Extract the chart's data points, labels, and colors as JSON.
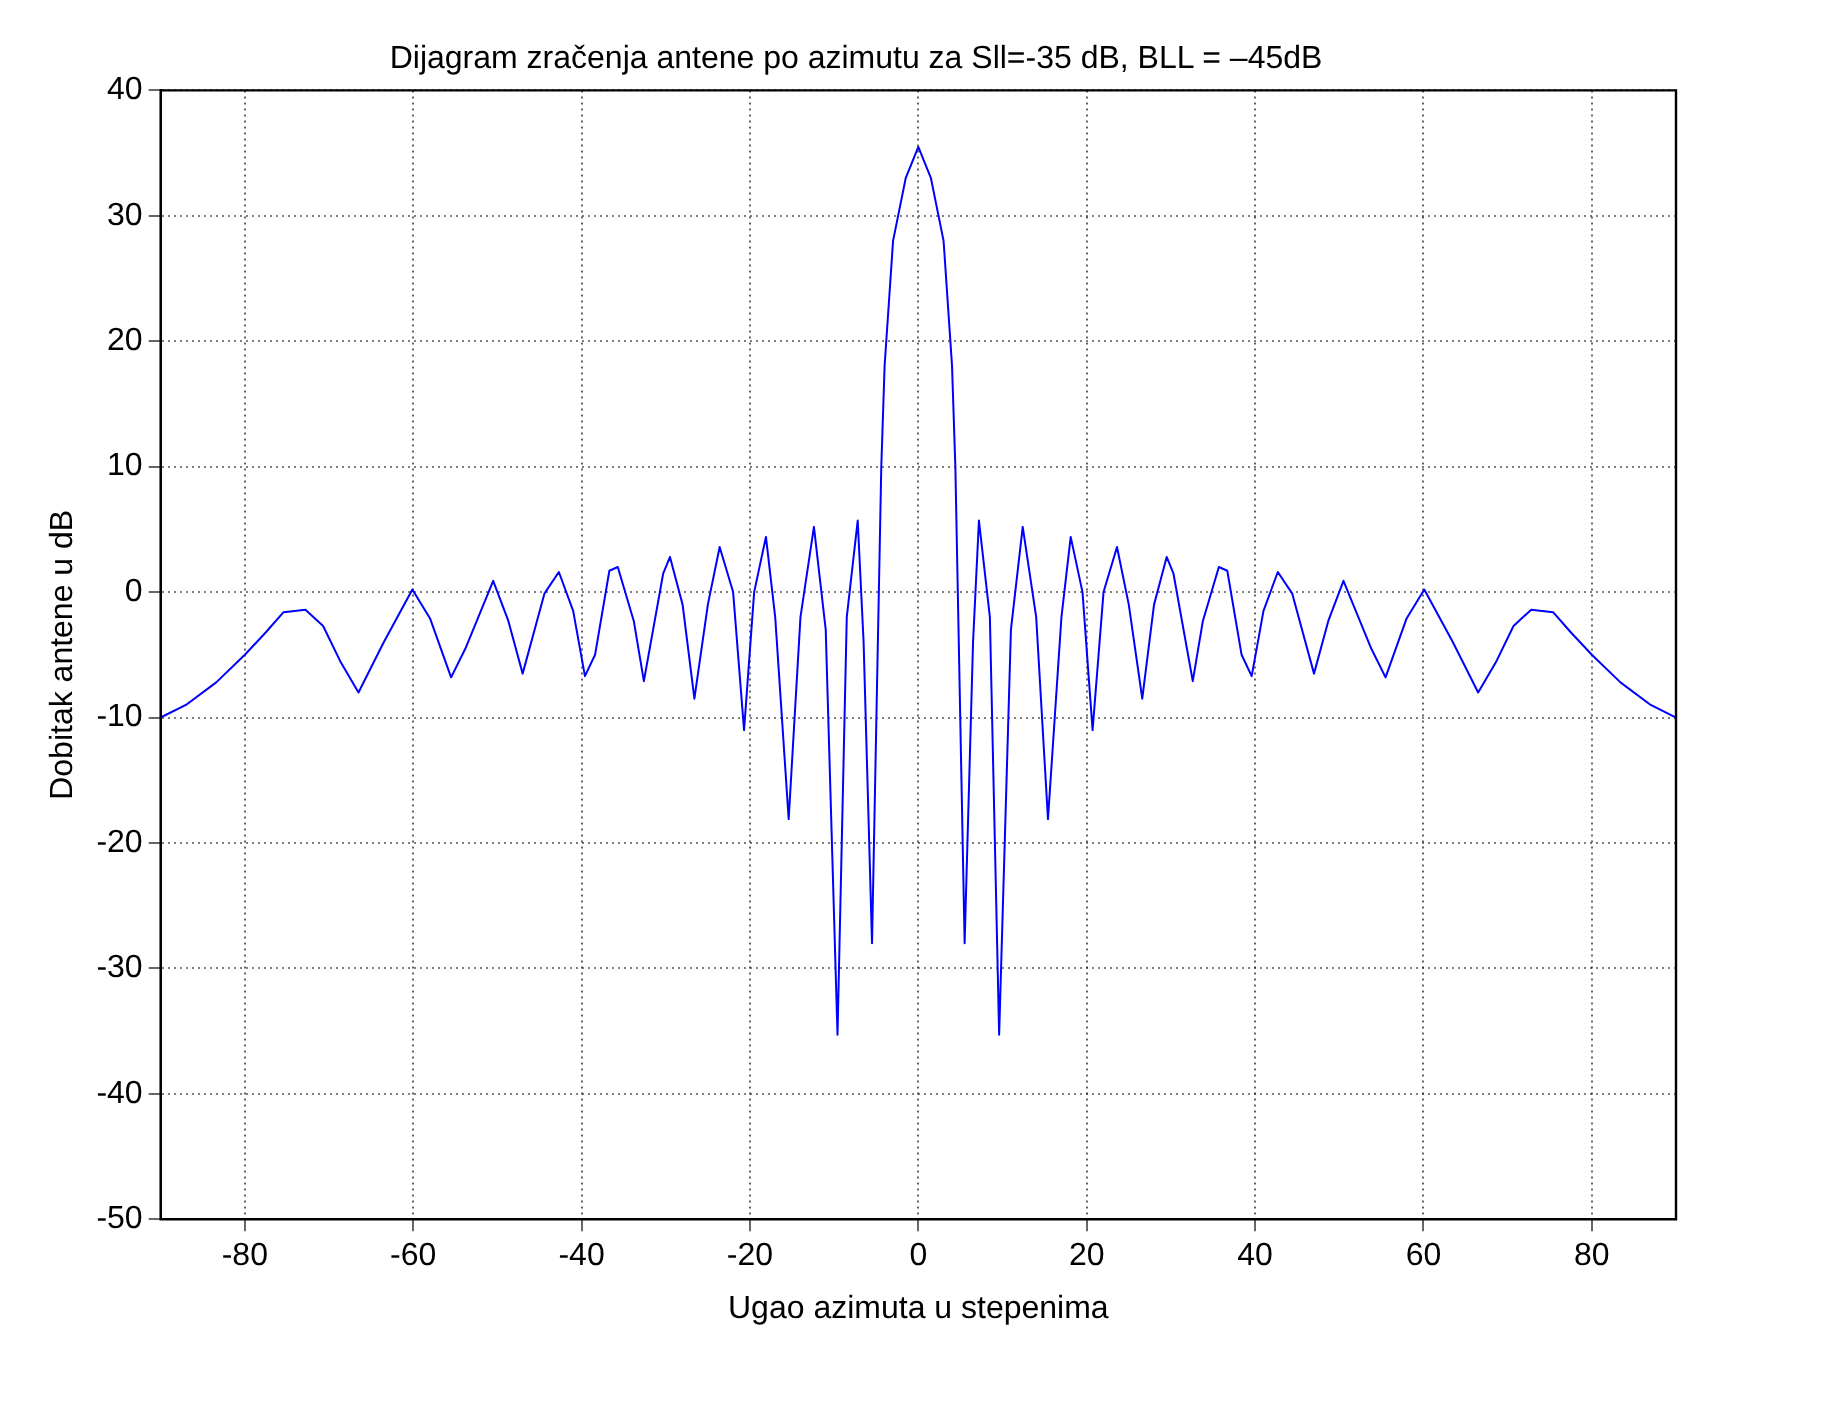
{
  "chart_data": {
    "type": "line",
    "title": "Dijagram zračenja antene po azimutu za Sll=-35 dB, BLL = –45dB",
    "xlabel": "Ugao azimuta u stepenima",
    "ylabel": "Dobitak antene u dB",
    "x": [
      -90,
      -87,
      -83.4,
      -80,
      -77.5,
      -75.4,
      -72.8,
      -70.7,
      -68.6,
      -66.5,
      -63.5,
      -60.1,
      -58,
      -55.5,
      -53.8,
      -50.5,
      -48.7,
      -47,
      -44.4,
      -42.7,
      -41,
      -39.6,
      -38.4,
      -36.7,
      -35.7,
      -33.8,
      -32.6,
      -30.3,
      -29.5,
      -28,
      -26.6,
      -25,
      -23.6,
      -22,
      -20.7,
      -19.5,
      -18.1,
      -17,
      -15.4,
      -14,
      -12.4,
      -11,
      -9.6,
      -8.5,
      -7.2,
      -6.5,
      -5.5,
      -4.4,
      -4,
      -3,
      -1.5,
      0,
      1.5,
      3,
      4,
      4.4,
      5.5,
      6.5,
      7.2,
      8.5,
      9.6,
      11,
      12.4,
      14,
      15.4,
      17,
      18.1,
      19.5,
      20.7,
      22,
      23.6,
      25,
      26.6,
      28,
      29.5,
      30.3,
      32.6,
      33.8,
      35.7,
      36.7,
      38.4,
      39.6,
      41,
      42.7,
      44.4,
      47,
      48.7,
      50.5,
      53.8,
      55.5,
      58,
      60.1,
      63.5,
      66.5,
      68.6,
      70.7,
      72.8,
      75.4,
      77.5,
      80,
      83.4,
      87,
      90
    ],
    "series": [
      {
        "color": "#0000ff",
        "values": [
          -10,
          -9,
          -7.2,
          -5,
          -3.2,
          -1.6,
          -1.4,
          -2.7,
          -5.6,
          -8,
          -4,
          0.2,
          -2.1,
          -6.8,
          -4.5,
          0.9,
          -2.3,
          -6.5,
          -0.1,
          1.6,
          -1.5,
          -6.7,
          -5,
          1.7,
          2,
          -2.3,
          -7.1,
          1.5,
          2.8,
          -1,
          -8.5,
          -1,
          3.6,
          0,
          -11,
          0,
          4.4,
          -2,
          -18.1,
          -2,
          5.2,
          -3,
          -35.3,
          -2,
          5.7,
          -4,
          -28,
          10,
          18.1,
          28,
          33,
          35.5,
          33,
          28,
          18.1,
          10,
          -28,
          -4,
          5.7,
          -2,
          -35.3,
          -3,
          5.2,
          -2,
          -18.1,
          -2,
          4.4,
          0,
          -11,
          0,
          3.6,
          -1,
          -8.5,
          -1,
          2.8,
          1.5,
          -7.1,
          -2.3,
          2,
          1.7,
          -5,
          -6.7,
          -1.5,
          1.6,
          -0.1,
          -6.5,
          -2.3,
          0.9,
          -4.5,
          -6.8,
          -2.1,
          0.2,
          -4,
          -8,
          -5.6,
          -2.7,
          -1.4,
          -1.6,
          -3.2,
          -5,
          -7.2,
          -9,
          -10
        ]
      }
    ],
    "xlim": [
      -90,
      90
    ],
    "ylim": [
      -50,
      40
    ],
    "xticks": [
      -80,
      -60,
      -40,
      -20,
      0,
      20,
      40,
      60,
      80
    ],
    "yticks": [
      -50,
      -40,
      -30,
      -20,
      -10,
      0,
      10,
      20,
      30,
      40
    ],
    "grid": true,
    "legend": false,
    "marker": "none",
    "line_style": "solid"
  }
}
